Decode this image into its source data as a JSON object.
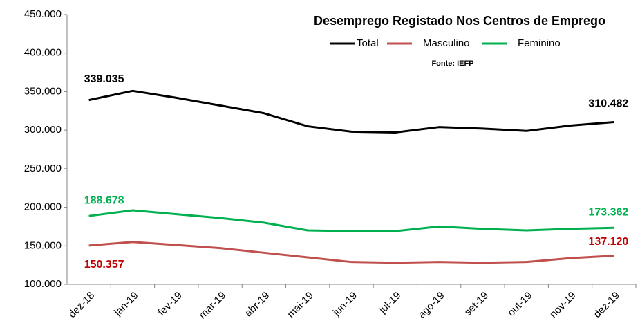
{
  "chart_data": {
    "type": "line",
    "title": "Desemprego Registado Nos Centros de Emprego",
    "subtitle": "Fonte: IEFP",
    "categories": [
      "dez-18",
      "jan-19",
      "fev-19",
      "mar-19",
      "abr-19",
      "mai-19",
      "jun-19",
      "jul-19",
      "ago-19",
      "set-19",
      "out-19",
      "nov-19",
      "dez-19"
    ],
    "series": [
      {
        "name": "Total",
        "color": "#000000",
        "label_color": "#000000",
        "values": [
          339035,
          351000,
          342000,
          332000,
          322000,
          305000,
          298000,
          297000,
          304000,
          302000,
          299000,
          306000,
          310482
        ],
        "value_labels": [
          "339.035",
          null,
          null,
          null,
          null,
          null,
          null,
          null,
          null,
          null,
          null,
          null,
          "310.482"
        ]
      },
      {
        "name": "Masculino",
        "color": "#c0504d",
        "label_color": "#c00000",
        "values": [
          150357,
          155000,
          151000,
          147000,
          141000,
          135000,
          129000,
          128000,
          129000,
          128000,
          129000,
          134000,
          137120
        ],
        "value_labels": [
          "150.357",
          null,
          null,
          null,
          null,
          null,
          null,
          null,
          null,
          null,
          null,
          null,
          "137.120"
        ]
      },
      {
        "name": "Feminino",
        "color": "#00b050",
        "label_color": "#00b050",
        "values": [
          188678,
          196000,
          191000,
          186000,
          180000,
          170000,
          169000,
          169000,
          175000,
          172000,
          170000,
          172000,
          173362
        ],
        "value_labels": [
          "188.678",
          null,
          null,
          null,
          null,
          null,
          null,
          null,
          null,
          null,
          null,
          null,
          "173.362"
        ]
      }
    ],
    "ylim": [
      100000,
      450000
    ],
    "yticks": [
      {
        "value": 100000,
        "label": "100.000"
      },
      {
        "value": 150000,
        "label": "150.000"
      },
      {
        "value": 200000,
        "label": "200.000"
      },
      {
        "value": 250000,
        "label": "250.000"
      },
      {
        "value": 300000,
        "label": "300.000"
      },
      {
        "value": 350000,
        "label": "350.000"
      },
      {
        "value": 400000,
        "label": "400.000"
      },
      {
        "value": 450000,
        "label": "450.000"
      }
    ],
    "grid": false,
    "legend": "top-right"
  }
}
